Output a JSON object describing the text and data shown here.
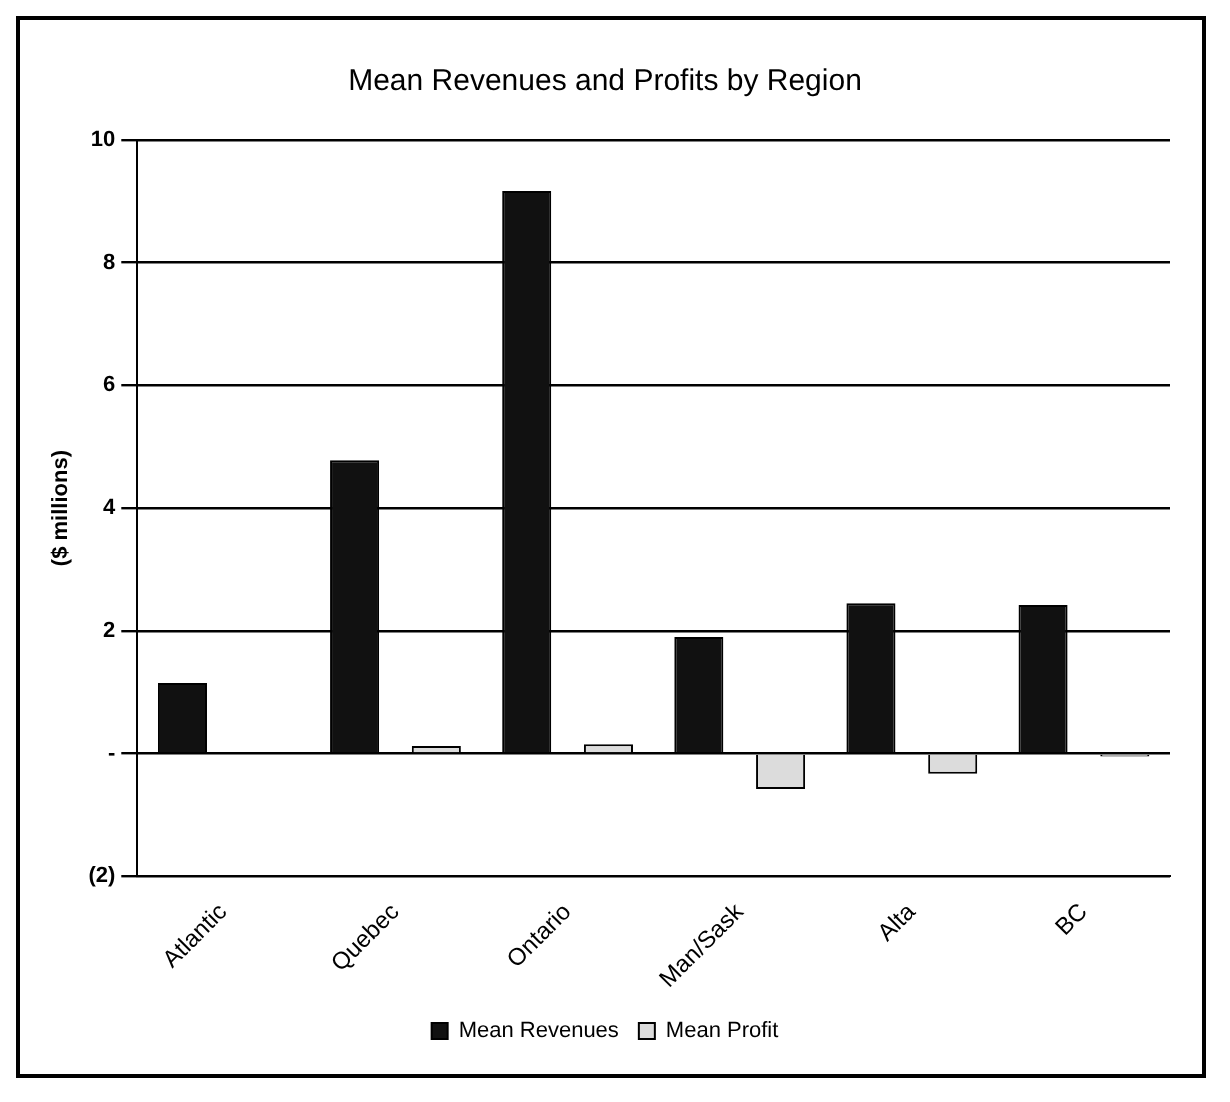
{
  "chart_data": {
    "type": "bar",
    "title": "Mean Revenues and Profits by Region",
    "ylabel": "($ millions)",
    "categories": [
      "Atlantic",
      "Quebec",
      "Ontario",
      "Man/Sask",
      "Alta",
      "BC"
    ],
    "series": [
      {
        "name": "Mean Revenues",
        "color": "#111111",
        "values": [
          1.15,
          4.78,
          9.17,
          1.9,
          2.45,
          2.42
        ]
      },
      {
        "name": "Mean Profit",
        "color": "#dcdcdc",
        "values": [
          -0.02,
          0.12,
          0.15,
          -0.58,
          -0.33,
          -0.05
        ]
      }
    ],
    "ylim": [
      -2,
      10
    ],
    "yticks": [
      {
        "value": -2,
        "label": "(2)"
      },
      {
        "value": 0,
        "label": "-"
      },
      2,
      4,
      6,
      8,
      10
    ],
    "grid": "y",
    "legend": "bottom"
  }
}
